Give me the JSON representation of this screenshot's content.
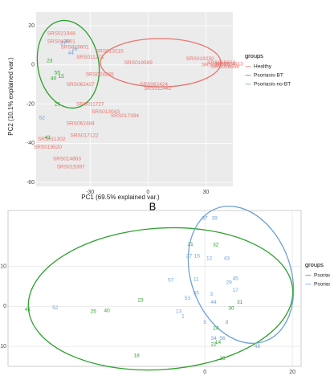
{
  "chart_data": [
    {
      "type": "scatter",
      "x_label": "PC1 (69.5% explained var.)",
      "y_label": "PC2 (10.1% explained var.)",
      "annotation": "B",
      "legend_title": "groups",
      "xlim": [
        -58,
        44
      ],
      "ylim": [
        -62,
        27
      ],
      "xticks": [
        -30,
        0,
        30
      ],
      "yticks": [
        20,
        0,
        -20,
        -40,
        -60
      ],
      "grid": true,
      "series": [
        {
          "name": "Healthy",
          "color": "#e8736c",
          "labels": [
            "SRS019250",
            "SRS019599",
            "SRS062424",
            "SRS011442",
            "SRS062427",
            "SRS011727",
            "SRS013043",
            "SRS017394",
            "SRS062484",
            "SRS017122",
            "SRS019520",
            "SRS014863",
            "SRS015397",
            "SRS011302",
            "SRS043001",
            "SRS019601",
            "SRS011271",
            "SRS021948",
            "SRS013215",
            "SRS024265",
            "SRS016095",
            "SRS018656",
            "SRS015663",
            "SRS014613"
          ],
          "x": [
            27,
            -5,
            3,
            5,
            -35,
            -30,
            -22,
            -12,
            -35,
            -33,
            -52,
            -42,
            -40,
            -50,
            -45,
            -38,
            -30,
            -45,
            -20,
            -25,
            35,
            40,
            38,
            42
          ],
          "values": [
            3,
            1,
            -10,
            -12,
            -10,
            -20,
            -24,
            -26,
            -30,
            -36,
            -42,
            -48,
            -52,
            -38,
            12,
            9,
            4,
            16,
            7,
            -5,
            0,
            -1,
            1,
            0.5
          ]
        },
        {
          "name": "Psoriasis-BT",
          "color": "#2ca02c",
          "labels": [
            "41",
            "25",
            "15",
            "55",
            "40",
            "23"
          ],
          "x": [
            -52,
            -47,
            -45,
            -47,
            -49,
            -51
          ],
          "values": [
            -37,
            -20,
            -6,
            -4,
            -7,
            2
          ]
        },
        {
          "name": "Psoriasis-no-BT",
          "color": "#6f9fd8",
          "labels": [
            "52",
            "37",
            "39",
            "26",
            "44"
          ],
          "x": [
            -55,
            -44,
            -42,
            -38,
            -40
          ],
          "values": [
            -27,
            11,
            12,
            8,
            6
          ]
        }
      ]
    },
    {
      "type": "scatter",
      "legend_title": "groups",
      "xlim": [
        -45,
        22
      ],
      "ylim": [
        -15,
        24
      ],
      "xticks": [
        0,
        20
      ],
      "yticks": [
        10,
        0,
        -10
      ],
      "grid": true,
      "series": [
        {
          "name": "Psoriasis-BT",
          "color": "#2ca02c",
          "labels": [
            "41",
            "25",
            "40",
            "23",
            "18",
            "21",
            "32",
            "24",
            "31",
            "14",
            "22",
            "26",
            "30"
          ],
          "x": [
            -40.5,
            -25.5,
            -22.4,
            -14.7,
            -15.6,
            -3.3,
            2.5,
            2.5,
            8,
            3,
            2,
            4,
            6
          ],
          "values": [
            -0.8,
            -1.3,
            -1.1,
            1.5,
            -12.3,
            15.5,
            15.4,
            -5.5,
            1,
            -9,
            -9.5,
            -13,
            -0.5
          ]
        },
        {
          "name": "Psoriasis-no-BT",
          "color": "#6f9fd8",
          "labels": [
            "52",
            "57",
            "27",
            "15",
            "37",
            "39",
            "11",
            "53",
            "55",
            "13",
            "1",
            "5",
            "34",
            "56",
            "48",
            "12",
            "43",
            "29",
            "45",
            "3",
            "8",
            "44",
            "17"
          ],
          "x": [
            -34.2,
            -7.8,
            -3.6,
            -1.8,
            0,
            2.2,
            -2,
            -4,
            -2,
            -6,
            -5,
            0,
            2,
            4,
            12,
            1,
            5,
            5.5,
            7,
            1.5,
            5,
            2,
            7
          ],
          "values": [
            -0.4,
            6.6,
            12.6,
            12.6,
            22,
            22,
            6.8,
            2,
            3.3,
            -1.3,
            -2.5,
            -4,
            -8,
            -8,
            -10,
            12,
            12,
            6,
            7,
            3,
            -4,
            1,
            4
          ]
        }
      ]
    }
  ]
}
